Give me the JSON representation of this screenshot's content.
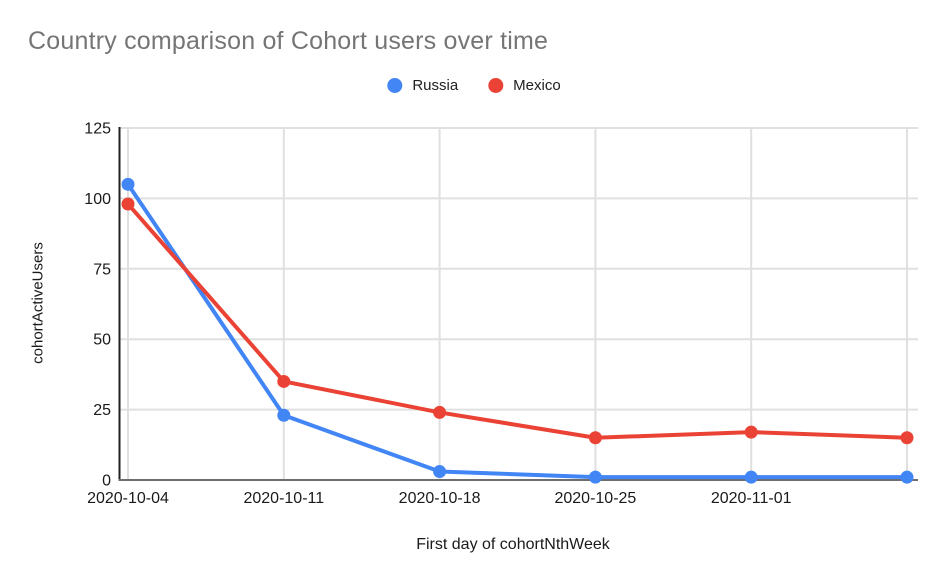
{
  "chart_data": {
    "type": "line",
    "title": "Country comparison of Cohort users over time",
    "xlabel": "First day of cohortNthWeek",
    "ylabel": "cohortActiveUsers",
    "categories": [
      "2020-10-04",
      "2020-10-11",
      "2020-10-18",
      "2020-10-25",
      "2020-11-01",
      ""
    ],
    "series": [
      {
        "name": "Russia",
        "color": "#4285F4",
        "values": [
          105,
          23,
          3,
          1,
          1,
          1
        ]
      },
      {
        "name": "Mexico",
        "color": "#EA4335",
        "values": [
          98,
          35,
          24,
          15,
          17,
          15
        ]
      }
    ],
    "ylim": [
      0,
      125
    ],
    "yticks": [
      0,
      25,
      50,
      75,
      100,
      125
    ],
    "grid": true,
    "legend_position": "top-center",
    "colors": {
      "grid": "#e0e0e0",
      "y_axis_line": "#212121",
      "x_axis_line": "#6e6e6e",
      "tick_text": "#1a1a1a",
      "title_text": "#757575"
    }
  }
}
